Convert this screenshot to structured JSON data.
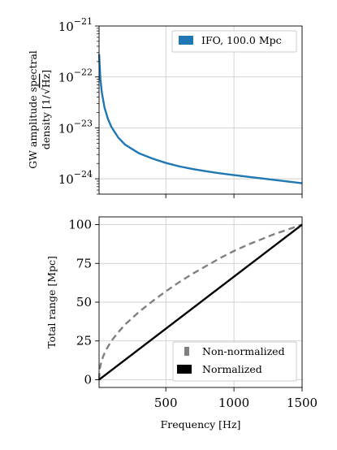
{
  "chart_data": [
    {
      "type": "line",
      "ylabel_line1": "GW amplitude spectral",
      "ylabel_line2_prefix": "density [1/",
      "ylabel_line2_radicand": "Hz",
      "ylabel_line2_suffix": "]",
      "yscale": "log",
      "ylim": [
        1e-21,
        5e-25
      ],
      "xlim": [
        10,
        1500
      ],
      "yticks": [
        {
          "value": 1e-21,
          "label": "10−21"
        },
        {
          "value": 1e-22,
          "label": "10−22"
        },
        {
          "value": 1e-23,
          "label": "10−23"
        },
        {
          "value": 1e-24,
          "label": "10−24"
        }
      ],
      "xticks": [
        500,
        1000,
        1500
      ],
      "grid": true,
      "legend_position": "top-right",
      "series": [
        {
          "name": "IFO, 100.0 Mpc",
          "color": "#1f77b4",
          "x": [
            10,
            20,
            30,
            50,
            75,
            100,
            150,
            200,
            300,
            400,
            500,
            600,
            700,
            800,
            900,
            1000,
            1100,
            1200,
            1300,
            1400,
            1500
          ],
          "y": [
            2.8e-22,
            9e-23,
            5e-23,
            2.5e-23,
            1.5e-23,
            1.05e-23,
            6.5e-24,
            4.7e-24,
            3.2e-24,
            2.5e-24,
            2.05e-24,
            1.75e-24,
            1.55e-24,
            1.4e-24,
            1.28e-24,
            1.18e-24,
            1.1e-24,
            1.02e-24,
            9.5e-25,
            8.8e-25,
            8.2e-25
          ]
        }
      ]
    },
    {
      "type": "line",
      "xlabel": "Frequency [Hz]",
      "ylabel": "Total range [Mpc]",
      "xlim": [
        10,
        1500
      ],
      "ylim": [
        -5,
        105
      ],
      "yticks": [
        0,
        25,
        50,
        75,
        100
      ],
      "xticks": [
        500,
        1000,
        1500
      ],
      "grid": true,
      "legend_position": "bottom-right",
      "series": [
        {
          "name": "Non-normalized",
          "color": "#808080",
          "dash": "dashed",
          "x": [
            10,
            15,
            25,
            40,
            60,
            100,
            150,
            200,
            300,
            400,
            500,
            600,
            700,
            800,
            900,
            1000,
            1100,
            1200,
            1300,
            1400,
            1500
          ],
          "y": [
            0,
            7,
            11,
            15,
            19,
            25,
            30.5,
            35.5,
            43.5,
            50.5,
            57,
            63,
            68.5,
            73.5,
            78.5,
            83,
            87,
            90.5,
            94,
            97,
            100
          ]
        },
        {
          "name": "Normalized",
          "color": "#000000",
          "dash": "solid",
          "x": [
            10,
            1500
          ],
          "y": [
            0,
            100
          ]
        }
      ]
    }
  ]
}
